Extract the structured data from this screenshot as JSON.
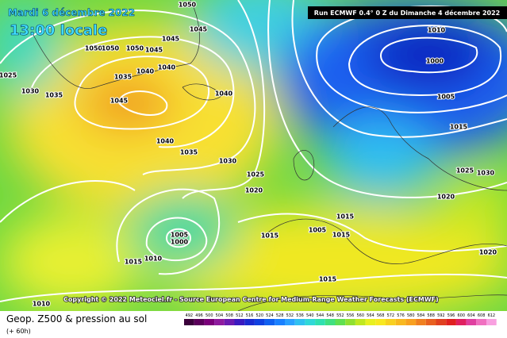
{
  "header": {
    "date": "Mardi 6 décembre 2022",
    "time": "13:00 locale",
    "run": "Run ECMWF 0.4° 0 Z du Dimanche 4 décembre 2022"
  },
  "copyright": "Copyright © 2022 Meteociel.fr - Source European Centre for Medium-Range Weather Forecasts (ECMWF)",
  "footer": {
    "title": "Geop. Z500 & pression au sol",
    "subtitle": "(+ 60h)"
  },
  "isobar_labels": [
    "1050",
    "1045",
    "1045",
    "1050",
    "1050",
    "1050",
    "1045",
    "1040",
    "1035",
    "1040",
    "1045",
    "1025",
    "1030",
    "1035",
    "1040",
    "1040",
    "1035",
    "1030",
    "1025",
    "1020",
    "1010",
    "1000",
    "1005",
    "1015",
    "1025",
    "1030",
    "1020",
    "1015",
    "1005",
    "1015",
    "1015",
    "1005",
    "1000",
    "1010",
    "1015",
    "1020",
    "1015",
    "1010"
  ],
  "legend": {
    "ticks": [
      492,
      496,
      500,
      504,
      508,
      512,
      516,
      520,
      524,
      528,
      532,
      536,
      540,
      544,
      548,
      552,
      556,
      560,
      564,
      568,
      572,
      576,
      580,
      584,
      588,
      592,
      596,
      600,
      604,
      608,
      612
    ],
    "colors": [
      "#3a003a",
      "#5a005a",
      "#7a007a",
      "#8e1a9e",
      "#6a1ab0",
      "#3a1ac0",
      "#1a2ad0",
      "#1040e0",
      "#1060f0",
      "#1a80ff",
      "#2aa0ff",
      "#30c0f0",
      "#30d8d8",
      "#30e0b0",
      "#40e080",
      "#60e050",
      "#90e030",
      "#c0e820",
      "#e8f020",
      "#f8e820",
      "#f8d020",
      "#f8b820",
      "#f8a020",
      "#f08020",
      "#e86020",
      "#e04020",
      "#e02020",
      "#e02060",
      "#e040a0",
      "#f070c0",
      "#f8a0e0"
    ]
  }
}
